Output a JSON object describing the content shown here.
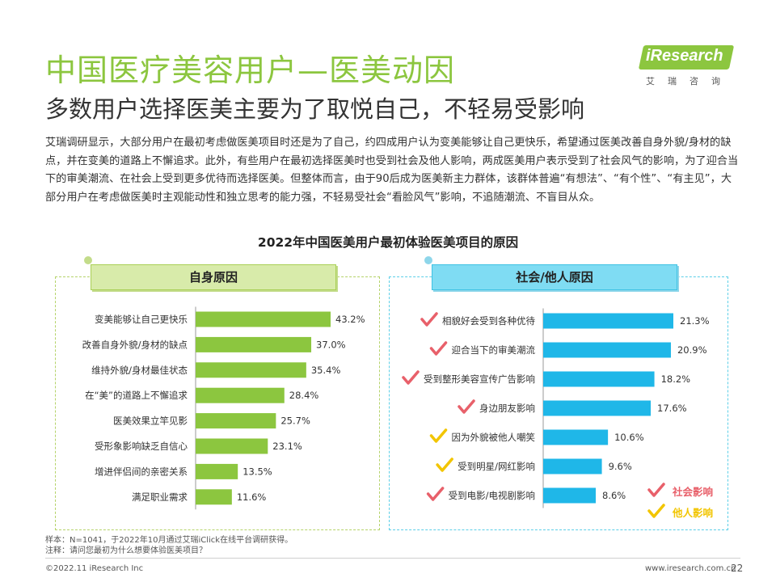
{
  "header": {
    "title": "中国医疗美容用户—医美动因",
    "subtitle": "多数用户选择医美主要为了取悦自己，不轻易受影响",
    "logo_text": "iResearch",
    "logo_sub": "艾瑞咨询"
  },
  "intro": "艾瑞调研显示，大部分用户在最初考虑做医美项目时还是为了自己，约四成用户认为变美能够让自己更快乐，希望通过医美改善自身外貌/身材的缺点，并在变美的道路上不懈追求。此外，有些用户在最初选择医美时也受到社会及他人影响，两成医美用户表示受到了社会风气的影响，为了迎合当下的审美潮流、在社会上受到更多优待而选择医美。但整体而言，由于90后成为医美新主力群体，该群体普遍“有想法”、“有个性”、“有主见”，大部分用户在考虑做医美时主观能动性和独立思考的能力强，不轻易受社会“看脸风气”影响，不追随潮流、不盲目从众。",
  "chart_data": [
    {
      "type": "bar",
      "orientation": "horizontal",
      "title": "2022年中国医美用户最初体验医美项目的原因",
      "panel_title": "自身原因",
      "unit": "%",
      "color": "#8cc63f",
      "categories": [
        "变美能够让自己更快乐",
        "改善自身外貌/身材的缺点",
        "维持外貌/身材最佳状态",
        "在“美”的道路上不懈追求",
        "医美效果立竿见影",
        "受形象影响缺乏自信心",
        "增进伴侣间的亲密关系",
        "满足职业需求"
      ],
      "values": [
        43.2,
        37.0,
        35.4,
        28.4,
        25.7,
        23.1,
        13.5,
        11.6
      ],
      "value_labels": [
        "43.2%",
        "37.0%",
        "35.4%",
        "28.4%",
        "25.7%",
        "23.1%",
        "13.5%",
        "11.6%"
      ]
    },
    {
      "type": "bar",
      "orientation": "horizontal",
      "panel_title": "社会/他人原因",
      "unit": "%",
      "color": "#1fb7e8",
      "categories": [
        "相貌好会受到各种优待",
        "迎合当下的审美潮流",
        "受到整形美容宣传广告影响",
        "身边朋友影响",
        "因为外貌被他人嘲笑",
        "受到明星/网红影响",
        "受到电影/电视剧影响"
      ],
      "values": [
        21.3,
        20.9,
        18.2,
        17.6,
        10.6,
        9.6,
        8.6
      ],
      "value_labels": [
        "21.3%",
        "20.9%",
        "18.2%",
        "17.6%",
        "10.6%",
        "9.6%",
        "8.6%"
      ],
      "marker": [
        "社会影响",
        "社会影响",
        "社会影响",
        "社会影响",
        "他人影响",
        "他人影响",
        "社会影响"
      ],
      "legend": [
        {
          "label": "社会影响",
          "color": "#e8606a"
        },
        {
          "label": "他人影响",
          "color": "#f2c500"
        }
      ]
    }
  ],
  "notes": {
    "sample": "样本：N=1041，于2022年10月通过艾瑞iClick在线平台调研获得。",
    "remark": "注释：请问您最初为什么想要体验医美项目？"
  },
  "footer": {
    "copyright": "©2022.11 iResearch Inc",
    "site": "www.iresearch.com.cn",
    "page": "22"
  }
}
